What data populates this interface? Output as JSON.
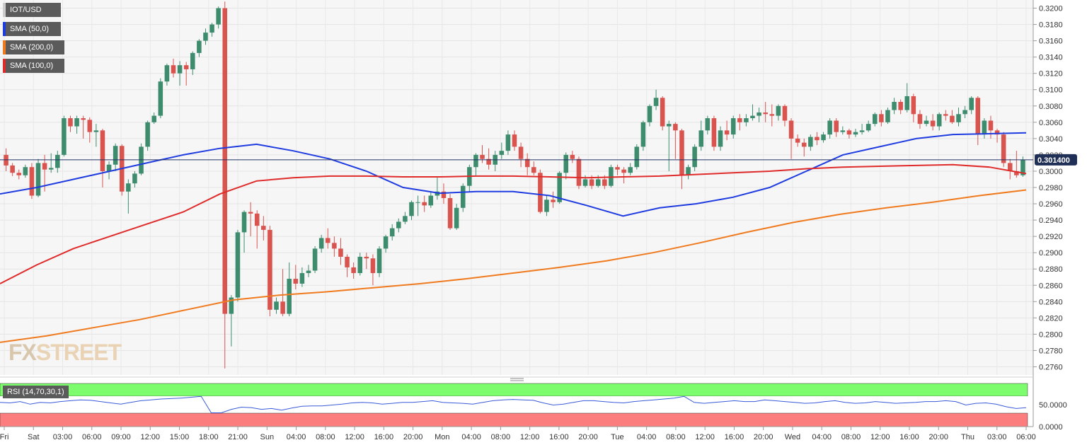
{
  "legend": {
    "symbol": "IOT/USD",
    "sma50": "SMA (50,0)",
    "sma200": "SMA (200,0)",
    "sma100": "SMA (100,0)"
  },
  "watermark": {
    "fx": "FX",
    "street": "STREET"
  },
  "rsi": {
    "label": "RSI (14,70,30,1)",
    "ticks": [
      "50.0000",
      "0.0000"
    ]
  },
  "colors": {
    "up": "#3d8c6e",
    "down": "#d9534f",
    "sma50": "#1f3ce0",
    "sma100": "#e02b2b",
    "sma200": "#f07a1e",
    "rsi_line": "#3a5bd9",
    "overbought": "#7dfc6e",
    "oversold": "#fb7d7d"
  },
  "chart_data": {
    "type": "candlestick",
    "price_ylim": [
      0.275,
      0.321
    ],
    "y_ticks": [
      "0.3200",
      "0.3180",
      "0.3160",
      "0.3140",
      "0.3120",
      "0.3100",
      "0.3080",
      "0.3060",
      "0.3040",
      "0.3020",
      "0.3000",
      "0.2980",
      "0.2960",
      "0.2940",
      "0.2920",
      "0.2900",
      "0.2880",
      "0.2860",
      "0.2840",
      "0.2820",
      "0.2800",
      "0.2780",
      "0.2760"
    ],
    "last_price": "0.301400",
    "x_labels": [
      "Fri",
      "Sat",
      "03:00",
      "06:00",
      "09:00",
      "12:00",
      "15:00",
      "18:00",
      "21:00",
      "Sun",
      "04:00",
      "08:00",
      "12:00",
      "16:00",
      "20:00",
      "Mon",
      "04:00",
      "08:00",
      "12:00",
      "16:00",
      "20:00",
      "Tue",
      "04:00",
      "08:00",
      "12:00",
      "16:00",
      "20:00",
      "Wed",
      "04:00",
      "08:00",
      "12:00",
      "16:00",
      "20:00",
      "Thu",
      "03:00",
      "06:00"
    ],
    "candles": [
      [
        0.302,
        0.3007,
        0.3028,
        0.3
      ],
      [
        0.3007,
        0.2998,
        0.301,
        0.2994
      ],
      [
        0.2998,
        0.2995,
        0.3002,
        0.299
      ],
      [
        0.2995,
        0.3005,
        0.3008,
        0.2992
      ],
      [
        0.3005,
        0.297,
        0.301,
        0.2966
      ],
      [
        0.297,
        0.301,
        0.3015,
        0.2968
      ],
      [
        0.301,
        0.3002,
        0.302,
        0.2975
      ],
      [
        0.3002,
        0.3004,
        0.3022,
        0.2998
      ],
      [
        0.3004,
        0.302,
        0.3025,
        0.2998
      ],
      [
        0.302,
        0.3065,
        0.3068,
        0.3018
      ],
      [
        0.3065,
        0.3055,
        0.3068,
        0.3048
      ],
      [
        0.3055,
        0.3065,
        0.3068,
        0.3046
      ],
      [
        0.3065,
        0.3063,
        0.3068,
        0.304
      ],
      [
        0.3063,
        0.3048,
        0.3066,
        0.3035
      ],
      [
        0.3048,
        0.305,
        0.3058,
        0.303
      ],
      [
        0.305,
        0.3,
        0.3052,
        0.298
      ],
      [
        0.3,
        0.3008,
        0.3012,
        0.299
      ],
      [
        0.3008,
        0.3031,
        0.3034,
        0.3
      ],
      [
        0.3031,
        0.2975,
        0.3033,
        0.297
      ],
      [
        0.2975,
        0.2985,
        0.299,
        0.2948
      ],
      [
        0.2985,
        0.2997,
        0.3,
        0.298
      ],
      [
        0.2997,
        0.303,
        0.3034,
        0.2995
      ],
      [
        0.303,
        0.306,
        0.3062,
        0.3025
      ],
      [
        0.306,
        0.3068,
        0.3072,
        0.3058
      ],
      [
        0.3068,
        0.311,
        0.3114,
        0.3065
      ],
      [
        0.311,
        0.313,
        0.3132,
        0.3105
      ],
      [
        0.313,
        0.312,
        0.3138,
        0.3115
      ],
      [
        0.312,
        0.313,
        0.3135,
        0.3105
      ],
      [
        0.313,
        0.3125,
        0.3134,
        0.3105
      ],
      [
        0.3125,
        0.3145,
        0.3147,
        0.3118
      ],
      [
        0.3145,
        0.316,
        0.3162,
        0.314
      ],
      [
        0.316,
        0.317,
        0.3175,
        0.3155
      ],
      [
        0.317,
        0.318,
        0.3182,
        0.3165
      ],
      [
        0.318,
        0.32,
        0.3202,
        0.3175
      ],
      [
        0.32,
        0.2825,
        0.3208,
        0.2758
      ],
      [
        0.2825,
        0.2845,
        0.2848,
        0.2785
      ],
      [
        0.2845,
        0.2925,
        0.2928,
        0.284
      ],
      [
        0.2925,
        0.295,
        0.2952,
        0.29
      ],
      [
        0.295,
        0.2948,
        0.2962,
        0.292
      ],
      [
        0.2948,
        0.2933,
        0.2952,
        0.2905
      ],
      [
        0.2933,
        0.2928,
        0.2945,
        0.2915
      ],
      [
        0.2928,
        0.283,
        0.2933,
        0.2822
      ],
      [
        0.283,
        0.284,
        0.2845,
        0.2825
      ],
      [
        0.284,
        0.2825,
        0.288,
        0.2822
      ],
      [
        0.2825,
        0.2868,
        0.2888,
        0.2822
      ],
      [
        0.2868,
        0.2862,
        0.2885,
        0.2855
      ],
      [
        0.2862,
        0.2875,
        0.2882,
        0.2858
      ],
      [
        0.2875,
        0.2878,
        0.2885,
        0.287
      ],
      [
        0.2878,
        0.2905,
        0.2908,
        0.2875
      ],
      [
        0.2905,
        0.2918,
        0.2922,
        0.29
      ],
      [
        0.2918,
        0.2912,
        0.293,
        0.2905
      ],
      [
        0.2912,
        0.2905,
        0.292,
        0.2895
      ],
      [
        0.2905,
        0.2895,
        0.2918,
        0.2885
      ],
      [
        0.2895,
        0.2882,
        0.2898,
        0.287
      ],
      [
        0.2882,
        0.2875,
        0.2888,
        0.2868
      ],
      [
        0.2875,
        0.2895,
        0.29,
        0.2872
      ],
      [
        0.2895,
        0.2893,
        0.29,
        0.288
      ],
      [
        0.2893,
        0.2875,
        0.2898,
        0.286
      ],
      [
        0.2875,
        0.2905,
        0.2908,
        0.287
      ],
      [
        0.2905,
        0.292,
        0.2922,
        0.29
      ],
      [
        0.292,
        0.293,
        0.2935,
        0.2915
      ],
      [
        0.293,
        0.2938,
        0.2942,
        0.2925
      ],
      [
        0.2938,
        0.2945,
        0.295,
        0.2935
      ],
      [
        0.2945,
        0.2962,
        0.2964,
        0.294
      ],
      [
        0.2962,
        0.2962,
        0.297,
        0.2945
      ],
      [
        0.2962,
        0.2958,
        0.297,
        0.295
      ],
      [
        0.2958,
        0.297,
        0.2975,
        0.2955
      ],
      [
        0.297,
        0.2975,
        0.2992,
        0.2965
      ],
      [
        0.2975,
        0.2967,
        0.2985,
        0.296
      ],
      [
        0.2967,
        0.293,
        0.2972,
        0.2928
      ],
      [
        0.293,
        0.2955,
        0.296,
        0.2928
      ],
      [
        0.2955,
        0.2982,
        0.2985,
        0.295
      ],
      [
        0.2982,
        0.3005,
        0.3008,
        0.2975
      ],
      [
        0.3005,
        0.302,
        0.3022,
        0.2995
      ],
      [
        0.302,
        0.3015,
        0.3032,
        0.301
      ],
      [
        0.3015,
        0.3008,
        0.3028,
        0.3002
      ],
      [
        0.3008,
        0.302,
        0.3025,
        0.3
      ],
      [
        0.302,
        0.3025,
        0.3035,
        0.3015
      ],
      [
        0.3025,
        0.3045,
        0.305,
        0.302
      ],
      [
        0.3045,
        0.303,
        0.305,
        0.3025
      ],
      [
        0.303,
        0.3015,
        0.3035,
        0.3005
      ],
      [
        0.3015,
        0.3005,
        0.3022,
        0.2995
      ],
      [
        0.3005,
        0.2998,
        0.3012,
        0.2995
      ],
      [
        0.2998,
        0.295,
        0.3002,
        0.2948
      ],
      [
        0.295,
        0.2965,
        0.297,
        0.2945
      ],
      [
        0.2965,
        0.2962,
        0.2975,
        0.2955
      ],
      [
        0.2962,
        0.2998,
        0.3,
        0.296
      ],
      [
        0.2998,
        0.302,
        0.3023,
        0.299
      ],
      [
        0.302,
        0.3015,
        0.3025,
        0.301
      ],
      [
        0.3015,
        0.2982,
        0.3018,
        0.2978
      ],
      [
        0.2982,
        0.299,
        0.2995,
        0.298
      ],
      [
        0.299,
        0.2982,
        0.2995,
        0.2978
      ],
      [
        0.2982,
        0.299,
        0.2995,
        0.298
      ],
      [
        0.299,
        0.2982,
        0.2995,
        0.2978
      ],
      [
        0.2982,
        0.3005,
        0.3008,
        0.298
      ],
      [
        0.3005,
        0.3002,
        0.3008,
        0.2995
      ],
      [
        0.3002,
        0.2998,
        0.3005,
        0.2985
      ],
      [
        0.2998,
        0.3005,
        0.301,
        0.2995
      ],
      [
        0.3005,
        0.303,
        0.3033,
        0.3002
      ],
      [
        0.303,
        0.306,
        0.3062,
        0.3025
      ],
      [
        0.306,
        0.308,
        0.3082,
        0.3055
      ],
      [
        0.308,
        0.309,
        0.31,
        0.3075
      ],
      [
        0.309,
        0.3055,
        0.3092,
        0.305
      ],
      [
        0.3055,
        0.3058,
        0.3062,
        0.3
      ],
      [
        0.3058,
        0.305,
        0.306,
        0.3015
      ],
      [
        0.305,
        0.2995,
        0.3052,
        0.2978
      ],
      [
        0.2995,
        0.3005,
        0.3008,
        0.299
      ],
      [
        0.3005,
        0.303,
        0.3033,
        0.3
      ],
      [
        0.303,
        0.305,
        0.3062,
        0.3025
      ],
      [
        0.305,
        0.3065,
        0.3068,
        0.3045
      ],
      [
        0.3065,
        0.303,
        0.3068,
        0.3025
      ],
      [
        0.303,
        0.305,
        0.3055,
        0.3025
      ],
      [
        0.305,
        0.3045,
        0.3062,
        0.3038
      ],
      [
        0.3045,
        0.3065,
        0.3068,
        0.304
      ],
      [
        0.3065,
        0.306,
        0.307,
        0.305
      ],
      [
        0.306,
        0.3065,
        0.307,
        0.3055
      ],
      [
        0.3065,
        0.3068,
        0.3082,
        0.3062
      ],
      [
        0.3068,
        0.3072,
        0.3078,
        0.306
      ],
      [
        0.3072,
        0.307,
        0.3085,
        0.306
      ],
      [
        0.307,
        0.3068,
        0.3082,
        0.3055
      ],
      [
        0.3068,
        0.308,
        0.3082,
        0.3062
      ],
      [
        0.308,
        0.3062,
        0.3082,
        0.3055
      ],
      [
        0.3062,
        0.304,
        0.3065,
        0.3015
      ],
      [
        0.304,
        0.3035,
        0.3045,
        0.303
      ],
      [
        0.3035,
        0.303,
        0.304,
        0.3018
      ],
      [
        0.303,
        0.3042,
        0.3045,
        0.3025
      ],
      [
        0.3042,
        0.3038,
        0.3048,
        0.3032
      ],
      [
        0.3038,
        0.3045,
        0.3048,
        0.3035
      ],
      [
        0.3045,
        0.3062,
        0.3065,
        0.304
      ],
      [
        0.3062,
        0.3048,
        0.3065,
        0.3042
      ],
      [
        0.3048,
        0.305,
        0.3055,
        0.3045
      ],
      [
        0.305,
        0.3045,
        0.3052,
        0.304
      ],
      [
        0.3045,
        0.3048,
        0.3052,
        0.3042
      ],
      [
        0.3048,
        0.305,
        0.3058,
        0.3045
      ],
      [
        0.305,
        0.3058,
        0.3062,
        0.3048
      ],
      [
        0.3058,
        0.307,
        0.3072,
        0.3055
      ],
      [
        0.307,
        0.306,
        0.3075,
        0.3055
      ],
      [
        0.306,
        0.3075,
        0.3078,
        0.3058
      ],
      [
        0.3075,
        0.3085,
        0.309,
        0.307
      ],
      [
        0.3085,
        0.3075,
        0.3088,
        0.307
      ],
      [
        0.3075,
        0.3092,
        0.3108,
        0.3072
      ],
      [
        0.3092,
        0.307,
        0.3095,
        0.306
      ],
      [
        0.307,
        0.3058,
        0.3075,
        0.3052
      ],
      [
        0.3058,
        0.3062,
        0.3068,
        0.3055
      ],
      [
        0.3062,
        0.3055,
        0.307,
        0.305
      ],
      [
        0.3055,
        0.307,
        0.3072,
        0.305
      ],
      [
        0.307,
        0.3068,
        0.3075,
        0.3062
      ],
      [
        0.3068,
        0.306,
        0.3075,
        0.3058
      ],
      [
        0.306,
        0.307,
        0.3078,
        0.3055
      ],
      [
        0.307,
        0.3075,
        0.308,
        0.3065
      ],
      [
        0.3075,
        0.309,
        0.3092,
        0.307
      ],
      [
        0.309,
        0.3045,
        0.3092,
        0.3032
      ],
      [
        0.3045,
        0.3062,
        0.3065,
        0.304
      ],
      [
        0.3062,
        0.305,
        0.3068,
        0.304
      ],
      [
        0.305,
        0.3045,
        0.3052,
        0.3035
      ],
      [
        0.3045,
        0.301,
        0.3048,
        0.3005
      ],
      [
        0.301,
        0.3,
        0.3015,
        0.299
      ],
      [
        0.3,
        0.2995,
        0.3025,
        0.2992
      ],
      [
        0.2995,
        0.3014,
        0.3018,
        0.2993
      ]
    ],
    "series": [
      {
        "name": "SMA (50,0)",
        "values": [
          0.2972,
          0.298,
          0.299,
          0.3,
          0.301,
          0.302,
          0.3028,
          0.3033,
          0.3025,
          0.3015,
          0.3,
          0.298,
          0.2973,
          0.2975,
          0.2975,
          0.297,
          0.2958,
          0.2945,
          0.2955,
          0.296,
          0.2968,
          0.298,
          0.3,
          0.302,
          0.303,
          0.304,
          0.3045,
          0.3046,
          0.3047
        ]
      },
      {
        "name": "SMA (100,0)",
        "values": [
          0.2862,
          0.2885,
          0.2905,
          0.292,
          0.2935,
          0.295,
          0.2972,
          0.2988,
          0.2992,
          0.2994,
          0.2994,
          0.2993,
          0.2993,
          0.2994,
          0.2994,
          0.2993,
          0.2992,
          0.2993,
          0.2994,
          0.2996,
          0.2998,
          0.3,
          0.3003,
          0.3005,
          0.3006,
          0.3007,
          0.3008,
          0.3005,
          0.2997
        ]
      },
      {
        "name": "SMA (200,0)",
        "values": [
          0.279,
          0.2798,
          0.2808,
          0.2818,
          0.283,
          0.2842,
          0.2848,
          0.2852,
          0.2857,
          0.2862,
          0.2868,
          0.2875,
          0.2882,
          0.289,
          0.29,
          0.2912,
          0.2925,
          0.2937,
          0.2947,
          0.2955,
          0.2962,
          0.297,
          0.2977
        ]
      }
    ],
    "rsi_ylim": [
      0,
      100
    ],
    "rsi_values": [
      56,
      55,
      58,
      52,
      56,
      55,
      58,
      60,
      62,
      61,
      58,
      55,
      52,
      56,
      60,
      62,
      64,
      65,
      66,
      68,
      70,
      32,
      32,
      40,
      45,
      44,
      40,
      42,
      38,
      43,
      47,
      48,
      48,
      50,
      52,
      55,
      56,
      55,
      52,
      54,
      56,
      56,
      58,
      60,
      56,
      55,
      54,
      52,
      56,
      60,
      62,
      63,
      62,
      61,
      55,
      50,
      52,
      56,
      60,
      60,
      58,
      56,
      55,
      58,
      60,
      62,
      64,
      66,
      70,
      56,
      54,
      56,
      58,
      60,
      58,
      58,
      62,
      60,
      58,
      56,
      54,
      55,
      58,
      60,
      56,
      54,
      55,
      58,
      56,
      54,
      55,
      56,
      58,
      58,
      60,
      58,
      50,
      54,
      55,
      52,
      46,
      42,
      44
    ]
  }
}
